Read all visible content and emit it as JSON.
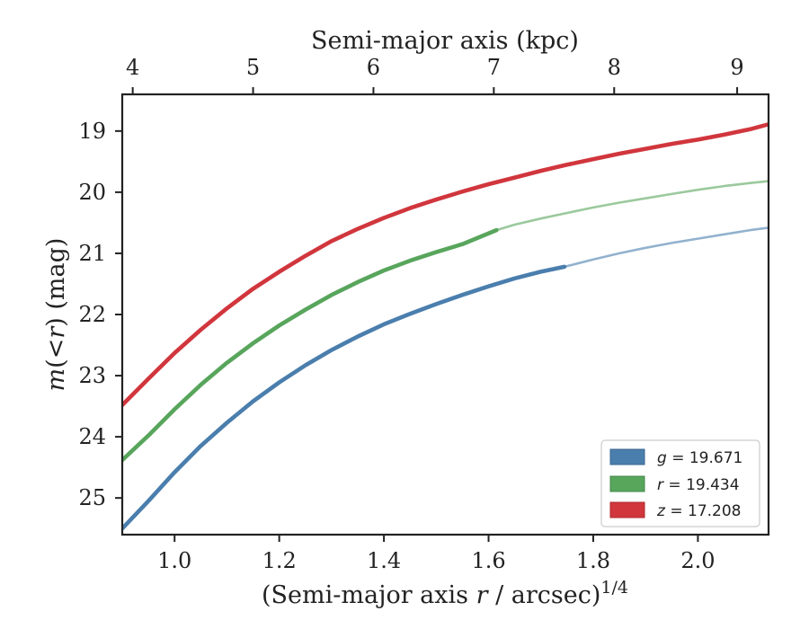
{
  "chart_data": {
    "type": "line",
    "xlabel_prefix": "(Semi-major axis ",
    "xlabel_var": "r",
    "xlabel_suffix": " / arcsec)",
    "xlabel_exp": "1/4",
    "ylabel_var": "m",
    "ylabel_paren_open": "(",
    "ylabel_lt": "<",
    "ylabel_var2": "r",
    "ylabel_paren_close": ")",
    "ylabel_unit": " (mag)",
    "top_xlabel": "Semi-major axis (kpc)",
    "xlim": [
      0.9,
      2.135
    ],
    "ylim": [
      25.6,
      18.4
    ],
    "y_inverted": true,
    "x_ticks": [
      1.0,
      1.2,
      1.4,
      1.6,
      1.8,
      2.0
    ],
    "x_tick_labels": [
      "1.0",
      "1.2",
      "1.4",
      "1.6",
      "1.8",
      "2.0"
    ],
    "y_ticks": [
      19,
      20,
      21,
      22,
      23,
      24,
      25
    ],
    "y_tick_labels": [
      "19",
      "20",
      "21",
      "22",
      "23",
      "24",
      "25"
    ],
    "top_ticks_kpc": [
      4,
      5,
      6,
      7,
      8,
      9
    ],
    "top_tick_labels": [
      "4",
      "5",
      "6",
      "7",
      "8",
      "9"
    ],
    "top_axis_x_positions": [
      0.92,
      1.15,
      1.38,
      1.61,
      1.84,
      2.075
    ],
    "legend_placement": "lower-right",
    "grid": false,
    "series": [
      {
        "name": "g",
        "legend_value": "19.671",
        "color": "#4a7ead",
        "solid_until": 1.745,
        "x": [
          0.9,
          0.95,
          1.0,
          1.05,
          1.1,
          1.15,
          1.2,
          1.25,
          1.3,
          1.35,
          1.4,
          1.45,
          1.5,
          1.55,
          1.6,
          1.65,
          1.7,
          1.745,
          1.8,
          1.85,
          1.9,
          1.95,
          2.0,
          2.05,
          2.1,
          2.135
        ],
        "y": [
          25.5,
          25.05,
          24.58,
          24.15,
          23.77,
          23.42,
          23.11,
          22.83,
          22.58,
          22.36,
          22.16,
          21.99,
          21.83,
          21.68,
          21.54,
          21.41,
          21.3,
          21.22,
          21.1,
          21.0,
          20.91,
          20.83,
          20.76,
          20.69,
          20.62,
          20.58
        ]
      },
      {
        "name": "r",
        "legend_value": "19.434",
        "color": "#58a55c",
        "solid_until": 1.615,
        "x": [
          0.9,
          0.95,
          1.0,
          1.05,
          1.1,
          1.15,
          1.2,
          1.25,
          1.3,
          1.35,
          1.4,
          1.45,
          1.5,
          1.55,
          1.615,
          1.65,
          1.7,
          1.75,
          1.8,
          1.85,
          1.9,
          1.95,
          2.0,
          2.05,
          2.1,
          2.135
        ],
        "y": [
          24.38,
          23.98,
          23.55,
          23.15,
          22.79,
          22.47,
          22.18,
          21.92,
          21.68,
          21.47,
          21.28,
          21.12,
          20.98,
          20.85,
          20.62,
          20.53,
          20.43,
          20.34,
          20.25,
          20.17,
          20.1,
          20.03,
          19.96,
          19.9,
          19.85,
          19.82
        ]
      },
      {
        "name": "z",
        "legend_value": "17.208",
        "color": "#d1363d",
        "solid_until": 2.135,
        "x": [
          0.9,
          0.95,
          1.0,
          1.05,
          1.1,
          1.15,
          1.2,
          1.25,
          1.3,
          1.35,
          1.4,
          1.45,
          1.5,
          1.55,
          1.6,
          1.65,
          1.7,
          1.75,
          1.8,
          1.85,
          1.9,
          1.95,
          2.0,
          2.05,
          2.1,
          2.135
        ],
        "y": [
          23.48,
          23.05,
          22.63,
          22.25,
          21.9,
          21.58,
          21.3,
          21.04,
          20.8,
          20.6,
          20.42,
          20.26,
          20.12,
          19.99,
          19.87,
          19.76,
          19.65,
          19.55,
          19.46,
          19.37,
          19.29,
          19.21,
          19.14,
          19.06,
          18.97,
          18.89
        ]
      }
    ]
  }
}
